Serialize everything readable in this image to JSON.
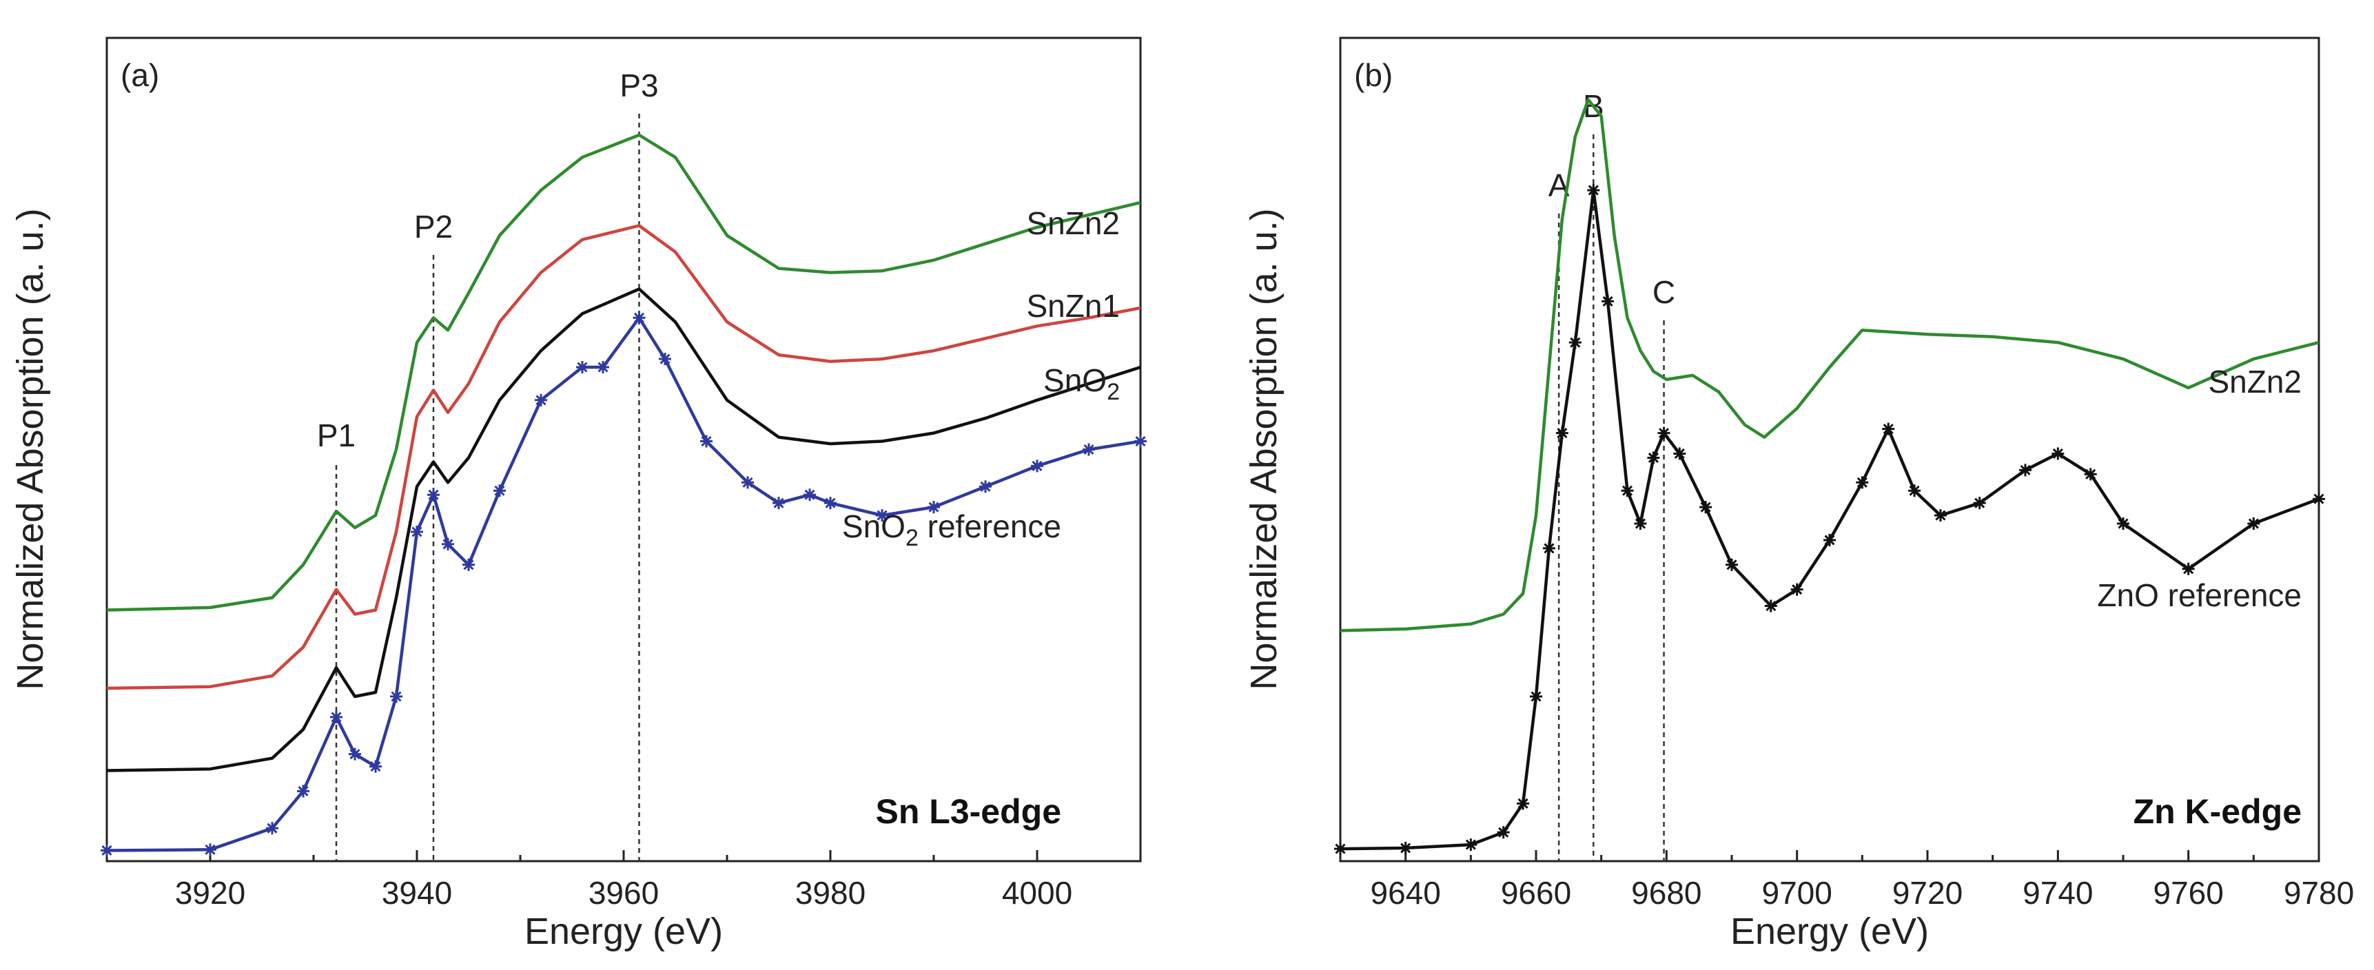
{
  "figure": {
    "panels": [
      {
        "label": "(a)",
        "edge_label": "Sn L3-edge",
        "xlabel": "Energy (eV)",
        "ylabel": "Normalized Absorption (a. u.)"
      },
      {
        "label": "(b)",
        "edge_label": "Zn K-edge",
        "xlabel": "Energy (eV)",
        "ylabel": "Normalized Absorption (a. u.)"
      }
    ]
  },
  "chart_data": [
    {
      "type": "line",
      "title": "(a)",
      "xlabel": "Energy (eV)",
      "ylabel": "Normalized Absorption (a. u.)",
      "xlim": [
        3910,
        4010
      ],
      "ylim": [
        0,
        10
      ],
      "xticks": [
        3920,
        3940,
        3960,
        3980,
        4000
      ],
      "yticks": [],
      "annotation_text": "Sn L3-edge",
      "reference_lines": [
        {
          "label": "P1",
          "x": 3932.2
        },
        {
          "label": "P2",
          "x": 3941.6
        },
        {
          "label": "P3",
          "x": 3961.5
        }
      ],
      "series": [
        {
          "name": "SnZn2",
          "label_parts": [
            "SnZn2"
          ],
          "color": "#2e8b2e",
          "marker": "none",
          "x": [
            3910,
            3920,
            3926,
            3929,
            3932.2,
            3934,
            3936,
            3938,
            3940,
            3941.6,
            3943,
            3945,
            3948,
            3952,
            3956,
            3961.5,
            3965,
            3970,
            3975,
            3980,
            3985,
            3990,
            3995,
            4000,
            4005,
            4010
          ],
          "y": [
            3.05,
            3.08,
            3.2,
            3.6,
            4.25,
            4.05,
            4.2,
            5.0,
            6.3,
            6.6,
            6.45,
            6.9,
            7.6,
            8.15,
            8.55,
            8.82,
            8.55,
            7.6,
            7.2,
            7.15,
            7.17,
            7.3,
            7.5,
            7.7,
            7.85,
            8.0
          ]
        },
        {
          "name": "SnZn1",
          "label_parts": [
            "SnZn1"
          ],
          "color": "#d0443f",
          "marker": "none",
          "x": [
            3910,
            3920,
            3926,
            3929,
            3932.2,
            3934,
            3936,
            3938,
            3940,
            3941.6,
            3943,
            3945,
            3948,
            3952,
            3956,
            3961.5,
            3965,
            3970,
            3975,
            3980,
            3985,
            3990,
            3995,
            4000,
            4005,
            4010
          ],
          "y": [
            2.1,
            2.12,
            2.25,
            2.6,
            3.3,
            3.0,
            3.05,
            4.0,
            5.4,
            5.72,
            5.45,
            5.8,
            6.55,
            7.15,
            7.55,
            7.72,
            7.4,
            6.55,
            6.15,
            6.07,
            6.1,
            6.2,
            6.35,
            6.5,
            6.6,
            6.72
          ]
        },
        {
          "name": "SnO2",
          "label_parts": [
            "SnO",
            "2",
            ""
          ],
          "color": "#111111",
          "marker": "none",
          "x": [
            3910,
            3920,
            3926,
            3929,
            3932.2,
            3934,
            3936,
            3938,
            3940,
            3941.6,
            3943,
            3945,
            3948,
            3952,
            3956,
            3961.5,
            3965,
            3970,
            3975,
            3980,
            3985,
            3990,
            3995,
            4000,
            4005,
            4010
          ],
          "y": [
            1.1,
            1.12,
            1.25,
            1.6,
            2.35,
            2.0,
            2.05,
            3.2,
            4.55,
            4.85,
            4.6,
            4.9,
            5.6,
            6.2,
            6.65,
            6.95,
            6.55,
            5.6,
            5.15,
            5.07,
            5.1,
            5.2,
            5.38,
            5.6,
            5.8,
            6.0
          ]
        },
        {
          "name": "SnO2 reference",
          "label_parts": [
            "SnO",
            "2",
            " reference"
          ],
          "color": "#2e3a9e",
          "marker": "star",
          "x": [
            3910,
            3920,
            3926,
            3929,
            3932.2,
            3934,
            3936,
            3938,
            3940,
            3941.6,
            3943,
            3945,
            3948,
            3952,
            3956,
            3958,
            3961.5,
            3964,
            3968,
            3972,
            3975,
            3978,
            3980,
            3985,
            3990,
            3995,
            4000,
            4005,
            4010
          ],
          "y": [
            0.13,
            0.14,
            0.4,
            0.85,
            1.75,
            1.3,
            1.15,
            2.0,
            4.0,
            4.45,
            3.85,
            3.6,
            4.5,
            5.6,
            6.0,
            6.0,
            6.6,
            6.1,
            5.1,
            4.6,
            4.35,
            4.45,
            4.35,
            4.2,
            4.3,
            4.55,
            4.8,
            5.0,
            5.1
          ]
        }
      ]
    },
    {
      "type": "line",
      "title": "(b)",
      "xlabel": "Energy (eV)",
      "ylabel": "Normalized Absorption (a. u.)",
      "xlim": [
        9630,
        9780
      ],
      "ylim": [
        0,
        10
      ],
      "xticks": [
        9640,
        9660,
        9680,
        9700,
        9720,
        9740,
        9760,
        9780
      ],
      "yticks": [],
      "annotation_text": "Zn K-edge",
      "reference_lines": [
        {
          "label": "A",
          "x": 9663.5
        },
        {
          "label": "B",
          "x": 9668.8
        },
        {
          "label": "C",
          "x": 9679.6
        }
      ],
      "series": [
        {
          "name": "SnZn2",
          "label_parts": [
            "SnZn2"
          ],
          "color": "#2e8b2e",
          "marker": "none",
          "x": [
            9630,
            9640,
            9650,
            9655,
            9658,
            9660,
            9662,
            9664,
            9666,
            9668,
            9670,
            9672,
            9674,
            9676,
            9678,
            9680,
            9684,
            9688,
            9692,
            9695,
            9700,
            9705,
            9710,
            9720,
            9730,
            9740,
            9750,
            9760,
            9770,
            9780
          ],
          "y": [
            2.8,
            2.82,
            2.88,
            3.0,
            3.25,
            4.2,
            6.0,
            7.8,
            8.8,
            9.25,
            9.05,
            7.6,
            6.6,
            6.2,
            5.95,
            5.85,
            5.9,
            5.7,
            5.3,
            5.15,
            5.5,
            6.0,
            6.45,
            6.4,
            6.37,
            6.3,
            6.1,
            5.75,
            6.1,
            6.3
          ]
        },
        {
          "name": "ZnO reference",
          "label_parts": [
            "ZnO reference"
          ],
          "color": "#111111",
          "marker": "star",
          "x": [
            9630,
            9640,
            9650,
            9655,
            9658,
            9660,
            9662,
            9664,
            9666,
            9668.8,
            9671,
            9674,
            9676,
            9678,
            9679.6,
            9682,
            9686,
            9690,
            9696,
            9700,
            9705,
            9710,
            9714,
            9718,
            9722,
            9728,
            9735,
            9740,
            9745,
            9750,
            9760,
            9770,
            9780
          ],
          "y": [
            0.15,
            0.16,
            0.2,
            0.35,
            0.7,
            2.0,
            3.8,
            5.2,
            6.3,
            8.15,
            6.8,
            4.5,
            4.1,
            4.9,
            5.2,
            4.95,
            4.3,
            3.6,
            3.1,
            3.3,
            3.9,
            4.6,
            5.25,
            4.5,
            4.2,
            4.35,
            4.75,
            4.95,
            4.7,
            4.1,
            3.55,
            4.1,
            4.4
          ]
        }
      ]
    }
  ]
}
